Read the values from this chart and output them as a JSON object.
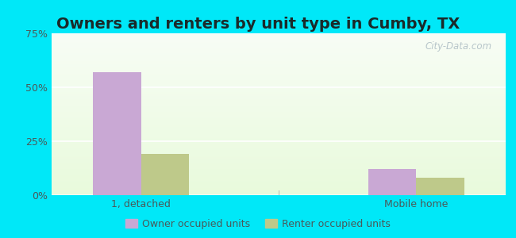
{
  "title": "Owners and renters by unit type in Cumby, TX",
  "categories": [
    "1, detached",
    "Mobile home"
  ],
  "owner_values": [
    57,
    12
  ],
  "renter_values": [
    19,
    8
  ],
  "owner_color": "#c9a8d4",
  "renter_color": "#bec98a",
  "ylim": [
    0,
    75
  ],
  "yticks": [
    0,
    25,
    50,
    75
  ],
  "yticklabels": [
    "0%",
    "25%",
    "50%",
    "75%"
  ],
  "bar_width": 0.35,
  "group_positions": [
    1.0,
    3.0
  ],
  "legend_owner": "Owner occupied units",
  "legend_renter": "Renter occupied units",
  "outer_bg": "#00e8f8",
  "title_fontsize": 14,
  "watermark": "City-Data.com"
}
